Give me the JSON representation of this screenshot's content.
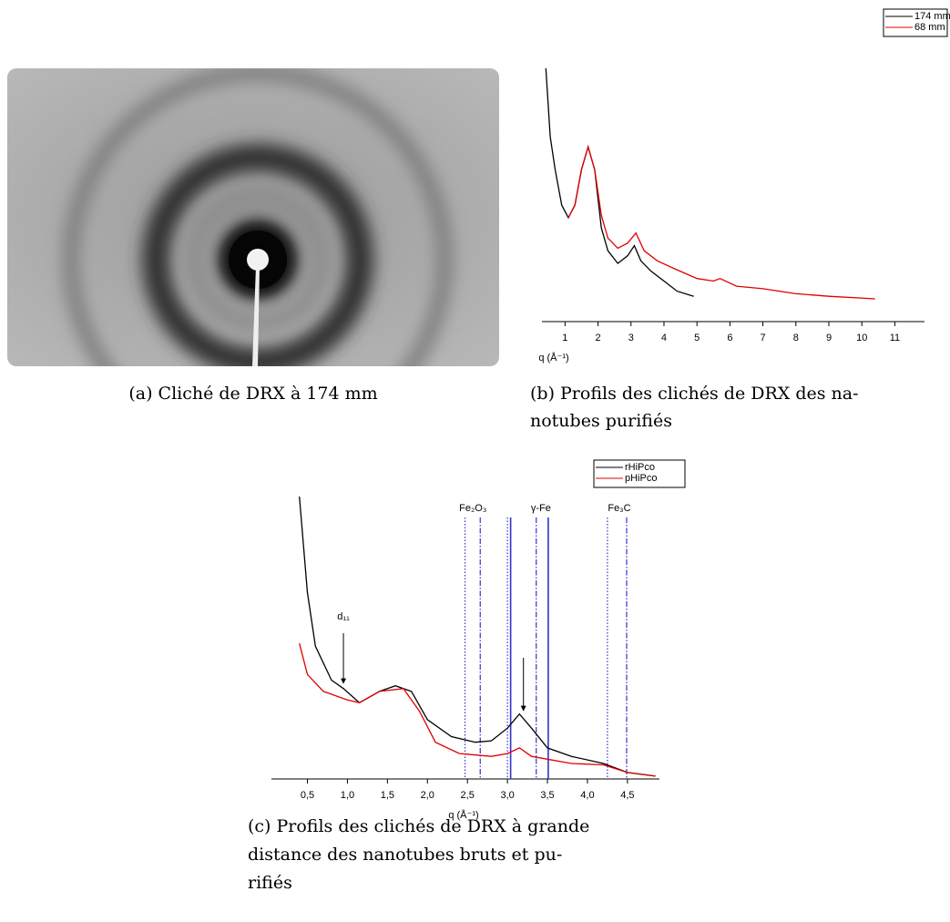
{
  "captions": {
    "a": [
      "(a) Cliché de DRX à 174 mm"
    ],
    "b": [
      "(b) Profils des clichés de DRX des na-",
      "notubes purifiés"
    ],
    "c": [
      "(c) Profils des clichés de DRX à grande",
      "distance des nanotubes bruts et pu-",
      "rifiés"
    ]
  },
  "chart_data": [
    {
      "type": "line",
      "xlabel": "q (Å⁻¹)",
      "xlim": [
        0.3,
        11.9
      ],
      "ylim": [
        0,
        100
      ],
      "xticks": [
        1,
        2,
        3,
        4,
        5,
        6,
        7,
        8,
        9,
        10,
        11
      ],
      "series": [
        {
          "name": "174 mm",
          "color": "#000000",
          "x": [
            0.42,
            0.55,
            0.7,
            0.9,
            1.1,
            1.3,
            1.5,
            1.7,
            1.9,
            2.1,
            2.3,
            2.6,
            2.9,
            3.1,
            3.3,
            3.6,
            4.0,
            4.4,
            4.9
          ],
          "values": [
            100,
            73,
            60,
            46,
            41,
            46,
            60,
            69,
            60,
            37,
            28,
            23,
            26,
            30,
            24,
            20,
            16,
            12,
            10
          ]
        },
        {
          "name": "68 mm",
          "color": "#e00000",
          "x": [
            1.1,
            1.3,
            1.5,
            1.7,
            1.9,
            2.1,
            2.3,
            2.6,
            2.9,
            3.15,
            3.4,
            3.8,
            4.3,
            5.0,
            5.5,
            5.7,
            6.2,
            7,
            8,
            9,
            10.4
          ],
          "values": [
            41,
            46,
            60,
            69,
            60,
            42,
            33,
            29,
            31,
            35,
            28,
            24,
            21,
            17,
            16,
            17,
            14,
            13,
            11,
            10,
            9
          ]
        }
      ]
    },
    {
      "type": "line",
      "xlabel": "q (Å⁻¹)",
      "xlim": [
        0.05,
        4.9
      ],
      "ylim": [
        0,
        100
      ],
      "xticks": [
        {
          "value": 0.5,
          "label": "0,5"
        },
        {
          "value": 1.0,
          "label": "1,0"
        },
        {
          "value": 1.5,
          "label": "1,5"
        },
        {
          "value": 2.0,
          "label": "2,0"
        },
        {
          "value": 2.5,
          "label": "2,5"
        },
        {
          "value": 3.0,
          "label": "3,0"
        },
        {
          "value": 3.5,
          "label": "3,5"
        },
        {
          "value": 4.0,
          "label": "4,0"
        },
        {
          "value": 4.5,
          "label": "4,5"
        }
      ],
      "series": [
        {
          "name": "rHiPco",
          "color": "#000000",
          "x": [
            0.4,
            0.5,
            0.6,
            0.8,
            0.95,
            1.15,
            1.4,
            1.6,
            1.8,
            2.0,
            2.3,
            2.6,
            2.8,
            3.0,
            3.15,
            3.3,
            3.5,
            3.8,
            4.2,
            4.5,
            4.85
          ],
          "values": [
            100,
            66,
            47,
            35,
            32,
            27,
            31,
            33,
            31,
            21,
            15,
            13,
            13.5,
            18,
            23,
            18,
            11,
            8,
            5.5,
            2.3,
            1
          ]
        },
        {
          "name": "pHiPco",
          "color": "#e00000",
          "x": [
            0.4,
            0.5,
            0.7,
            1.0,
            1.15,
            1.4,
            1.7,
            1.9,
            2.1,
            2.4,
            2.8,
            3.0,
            3.15,
            3.3,
            3.8,
            4.2,
            4.5,
            4.85
          ],
          "values": [
            48,
            37,
            31,
            28,
            27,
            31,
            32,
            24,
            13,
            9,
            8,
            9,
            11,
            8,
            5.5,
            5,
            2.3,
            1
          ]
        }
      ],
      "phases": [
        {
          "name": "Fe₂O₃",
          "lines": [
            {
              "x": 2.47,
              "style": "dotted"
            },
            {
              "x": 2.66,
              "style": "dashdot"
            }
          ]
        },
        {
          "name": "γ-Fe",
          "lines": [
            {
              "x": 3.04,
              "style": "solid"
            },
            {
              "x": 3.51,
              "style": "solid"
            }
          ]
        },
        {
          "name": "Fe₃C",
          "lines": [
            {
              "x": 3.0,
              "style": "dotted"
            },
            {
              "x": 3.36,
              "style": "dashdot"
            },
            {
              "x": 4.25,
              "style": "dotted"
            },
            {
              "x": 4.49,
              "style": "dashdot"
            }
          ]
        }
      ],
      "phase_color": "#3333cc",
      "annotations": [
        {
          "text": "d₁₁",
          "x": 0.95
        },
        {
          "x": 3.2
        }
      ]
    }
  ]
}
